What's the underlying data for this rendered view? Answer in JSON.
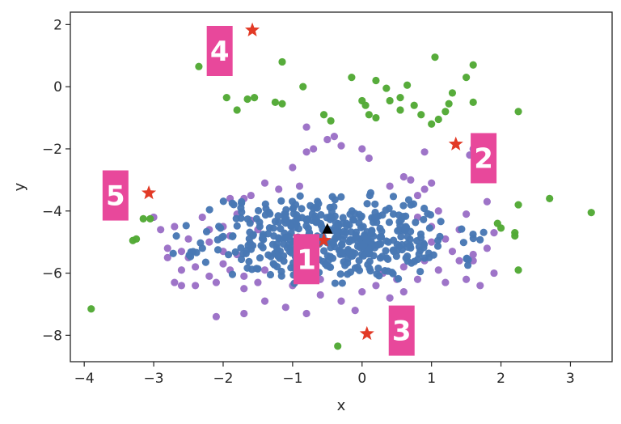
{
  "chart_data": {
    "type": "scatter",
    "xlabel": "x",
    "ylabel": "y",
    "xlim": [
      -4.2,
      3.6
    ],
    "ylim": [
      -8.85,
      2.4
    ],
    "xticks": [
      -4,
      -3,
      -2,
      -1,
      0,
      1,
      2,
      3
    ],
    "yticks": [
      2,
      0,
      -2,
      -4,
      -6,
      -8
    ],
    "tick_labels_x": [
      "−4",
      "−3",
      "−2",
      "−1",
      "0",
      "1",
      "2",
      "3"
    ],
    "tick_labels_y": [
      "2",
      "0",
      "−2",
      "−4",
      "−6",
      "−8"
    ],
    "grid": false,
    "colors": {
      "blue": "#4878b4",
      "purple": "#9b6fc6",
      "green": "#52a935",
      "star": "#e23a26",
      "triangle": "#000000",
      "box": "#e8489b"
    },
    "series": [
      {
        "color_key": "blue",
        "cluster": {
          "center": [
            -0.45,
            -4.85
          ],
          "sx": 0.72,
          "sy": 0.72,
          "rmax": 1.55,
          "n": 460,
          "seed": 11
        }
      },
      {
        "color_key": "purple",
        "points": [
          [
            -2.5,
            -4.9
          ],
          [
            -2.6,
            -5.3
          ],
          [
            -2.7,
            -6.3
          ],
          [
            -2.6,
            -6.4
          ],
          [
            -2.4,
            -6.4
          ],
          [
            -2.2,
            -6.1
          ],
          [
            -2.1,
            -6.3
          ],
          [
            -2.0,
            -5.7
          ],
          [
            -1.9,
            -5.9
          ],
          [
            -1.8,
            -5.4
          ],
          [
            -2.3,
            -4.2
          ],
          [
            -2.2,
            -4.6
          ],
          [
            -2.0,
            -4.5
          ],
          [
            -1.9,
            -4.8
          ],
          [
            -3.0,
            -4.2
          ],
          [
            -2.9,
            -4.6
          ],
          [
            -2.8,
            -5.2
          ],
          [
            -2.5,
            -5.5
          ],
          [
            -2.6,
            -5.9
          ],
          [
            -2.4,
            -5.8
          ],
          [
            -1.9,
            -3.6
          ],
          [
            -1.7,
            -3.6
          ],
          [
            -1.6,
            -3.5
          ],
          [
            -1.4,
            -3.1
          ],
          [
            -1.2,
            -3.3
          ],
          [
            -1.0,
            -2.6
          ],
          [
            -0.9,
            -3.2
          ],
          [
            -0.8,
            -2.1
          ],
          [
            -0.7,
            -2.0
          ],
          [
            -0.5,
            -1.7
          ],
          [
            -0.4,
            -1.6
          ],
          [
            -0.8,
            -1.3
          ],
          [
            -0.3,
            -1.9
          ],
          [
            0.0,
            -2.0
          ],
          [
            0.1,
            -2.3
          ],
          [
            0.4,
            -3.2
          ],
          [
            0.6,
            -2.9
          ],
          [
            0.7,
            -3.0
          ],
          [
            0.9,
            -3.3
          ],
          [
            1.0,
            -3.1
          ],
          [
            0.8,
            -3.5
          ],
          [
            1.1,
            -4.0
          ],
          [
            1.0,
            -4.5
          ],
          [
            1.2,
            -4.9
          ],
          [
            1.3,
            -5.3
          ],
          [
            1.4,
            -5.6
          ],
          [
            1.1,
            -5.9
          ],
          [
            1.2,
            -6.3
          ],
          [
            0.8,
            -6.2
          ],
          [
            0.6,
            -6.6
          ],
          [
            0.4,
            -6.8
          ],
          [
            0.0,
            -6.6
          ],
          [
            -0.3,
            -6.9
          ],
          [
            -0.6,
            -6.7
          ],
          [
            -0.8,
            -7.3
          ],
          [
            -1.1,
            -7.1
          ],
          [
            -1.4,
            -6.9
          ],
          [
            -1.7,
            -7.3
          ],
          [
            -2.1,
            -7.4
          ],
          [
            -1.7,
            -6.5
          ],
          [
            -1.5,
            -6.3
          ],
          [
            1.4,
            -4.6
          ],
          [
            1.6,
            -5.4
          ],
          [
            1.9,
            -4.7
          ],
          [
            1.8,
            -5.2
          ],
          [
            1.9,
            -6.0
          ],
          [
            1.6,
            -5.6
          ],
          [
            1.5,
            -6.2
          ],
          [
            1.7,
            -6.4
          ],
          [
            1.5,
            -4.1
          ],
          [
            1.8,
            -3.7
          ],
          [
            1.6,
            -2.0
          ],
          [
            1.55,
            -2.2
          ],
          [
            0.9,
            -2.1
          ],
          [
            -1.6,
            -4.3
          ],
          [
            -1.5,
            -4.6
          ],
          [
            -1.6,
            -5.1
          ],
          [
            -1.4,
            -5.9
          ],
          [
            -1.7,
            -6.1
          ],
          [
            -1.0,
            -6.4
          ],
          [
            -0.6,
            -6.2
          ],
          [
            0.2,
            -6.4
          ],
          [
            0.3,
            -6.0
          ],
          [
            0.6,
            -5.8
          ],
          [
            0.9,
            -5.6
          ],
          [
            1.0,
            -5.0
          ],
          [
            0.8,
            -4.2
          ],
          [
            -2.2,
            -5.0
          ],
          [
            -2.0,
            -5.3
          ],
          [
            -1.8,
            -4.1
          ],
          [
            -2.7,
            -4.5
          ],
          [
            -2.8,
            -5.5
          ],
          [
            -0.1,
            -7.2
          ],
          [
            0.5,
            -6.2
          ]
        ]
      },
      {
        "color_key": "green",
        "points": [
          [
            -2.35,
            0.65
          ],
          [
            -1.95,
            -0.35
          ],
          [
            -1.8,
            -0.75
          ],
          [
            -1.55,
            -0.35
          ],
          [
            -1.25,
            -0.5
          ],
          [
            -1.15,
            -0.55
          ],
          [
            -1.15,
            0.8
          ],
          [
            -0.85,
            -0.0
          ],
          [
            -0.55,
            -0.9
          ],
          [
            -0.45,
            -1.1
          ],
          [
            -0.15,
            0.3
          ],
          [
            0.0,
            -0.45
          ],
          [
            0.05,
            -0.6
          ],
          [
            0.1,
            -0.9
          ],
          [
            0.2,
            -1.0
          ],
          [
            0.35,
            -0.05
          ],
          [
            0.4,
            -0.45
          ],
          [
            0.55,
            -0.75
          ],
          [
            0.65,
            0.05
          ],
          [
            0.75,
            -0.6
          ],
          [
            0.85,
            -0.9
          ],
          [
            1.0,
            -1.2
          ],
          [
            1.05,
            0.95
          ],
          [
            1.1,
            -1.05
          ],
          [
            1.2,
            -0.8
          ],
          [
            1.25,
            -0.55
          ],
          [
            1.3,
            -0.2
          ],
          [
            1.5,
            0.3
          ],
          [
            1.6,
            0.7
          ],
          [
            1.6,
            -0.5
          ],
          [
            2.25,
            -0.8
          ],
          [
            2.7,
            -3.6
          ],
          [
            3.3,
            -4.05
          ],
          [
            2.25,
            -3.8
          ],
          [
            1.95,
            -4.4
          ],
          [
            2.0,
            -4.55
          ],
          [
            2.2,
            -4.8
          ],
          [
            2.25,
            -5.9
          ],
          [
            -3.05,
            -4.25
          ],
          [
            -3.15,
            -4.25
          ],
          [
            -3.25,
            -4.9
          ],
          [
            -3.3,
            -4.95
          ],
          [
            -3.9,
            -7.15
          ],
          [
            -0.35,
            -8.35
          ],
          [
            0.2,
            0.2
          ],
          [
            0.55,
            -0.35
          ],
          [
            -1.65,
            -0.4
          ],
          [
            2.2,
            -4.7
          ]
        ]
      }
    ],
    "triangle": [
      -0.5,
      -4.6
    ],
    "stars": [
      [
        -0.55,
        -4.95
      ],
      [
        1.35,
        -1.85
      ],
      [
        0.07,
        -7.95
      ],
      [
        -1.58,
        1.82
      ],
      [
        -3.07,
        -3.42
      ]
    ],
    "annotations": [
      {
        "text": "1",
        "x": -0.8,
        "y": -5.55
      },
      {
        "text": "2",
        "x": 1.75,
        "y": -2.3
      },
      {
        "text": "3",
        "x": 0.57,
        "y": -7.85
      },
      {
        "text": "4",
        "x": -2.05,
        "y": 1.15
      },
      {
        "text": "5",
        "x": -3.55,
        "y": -3.5
      }
    ]
  }
}
